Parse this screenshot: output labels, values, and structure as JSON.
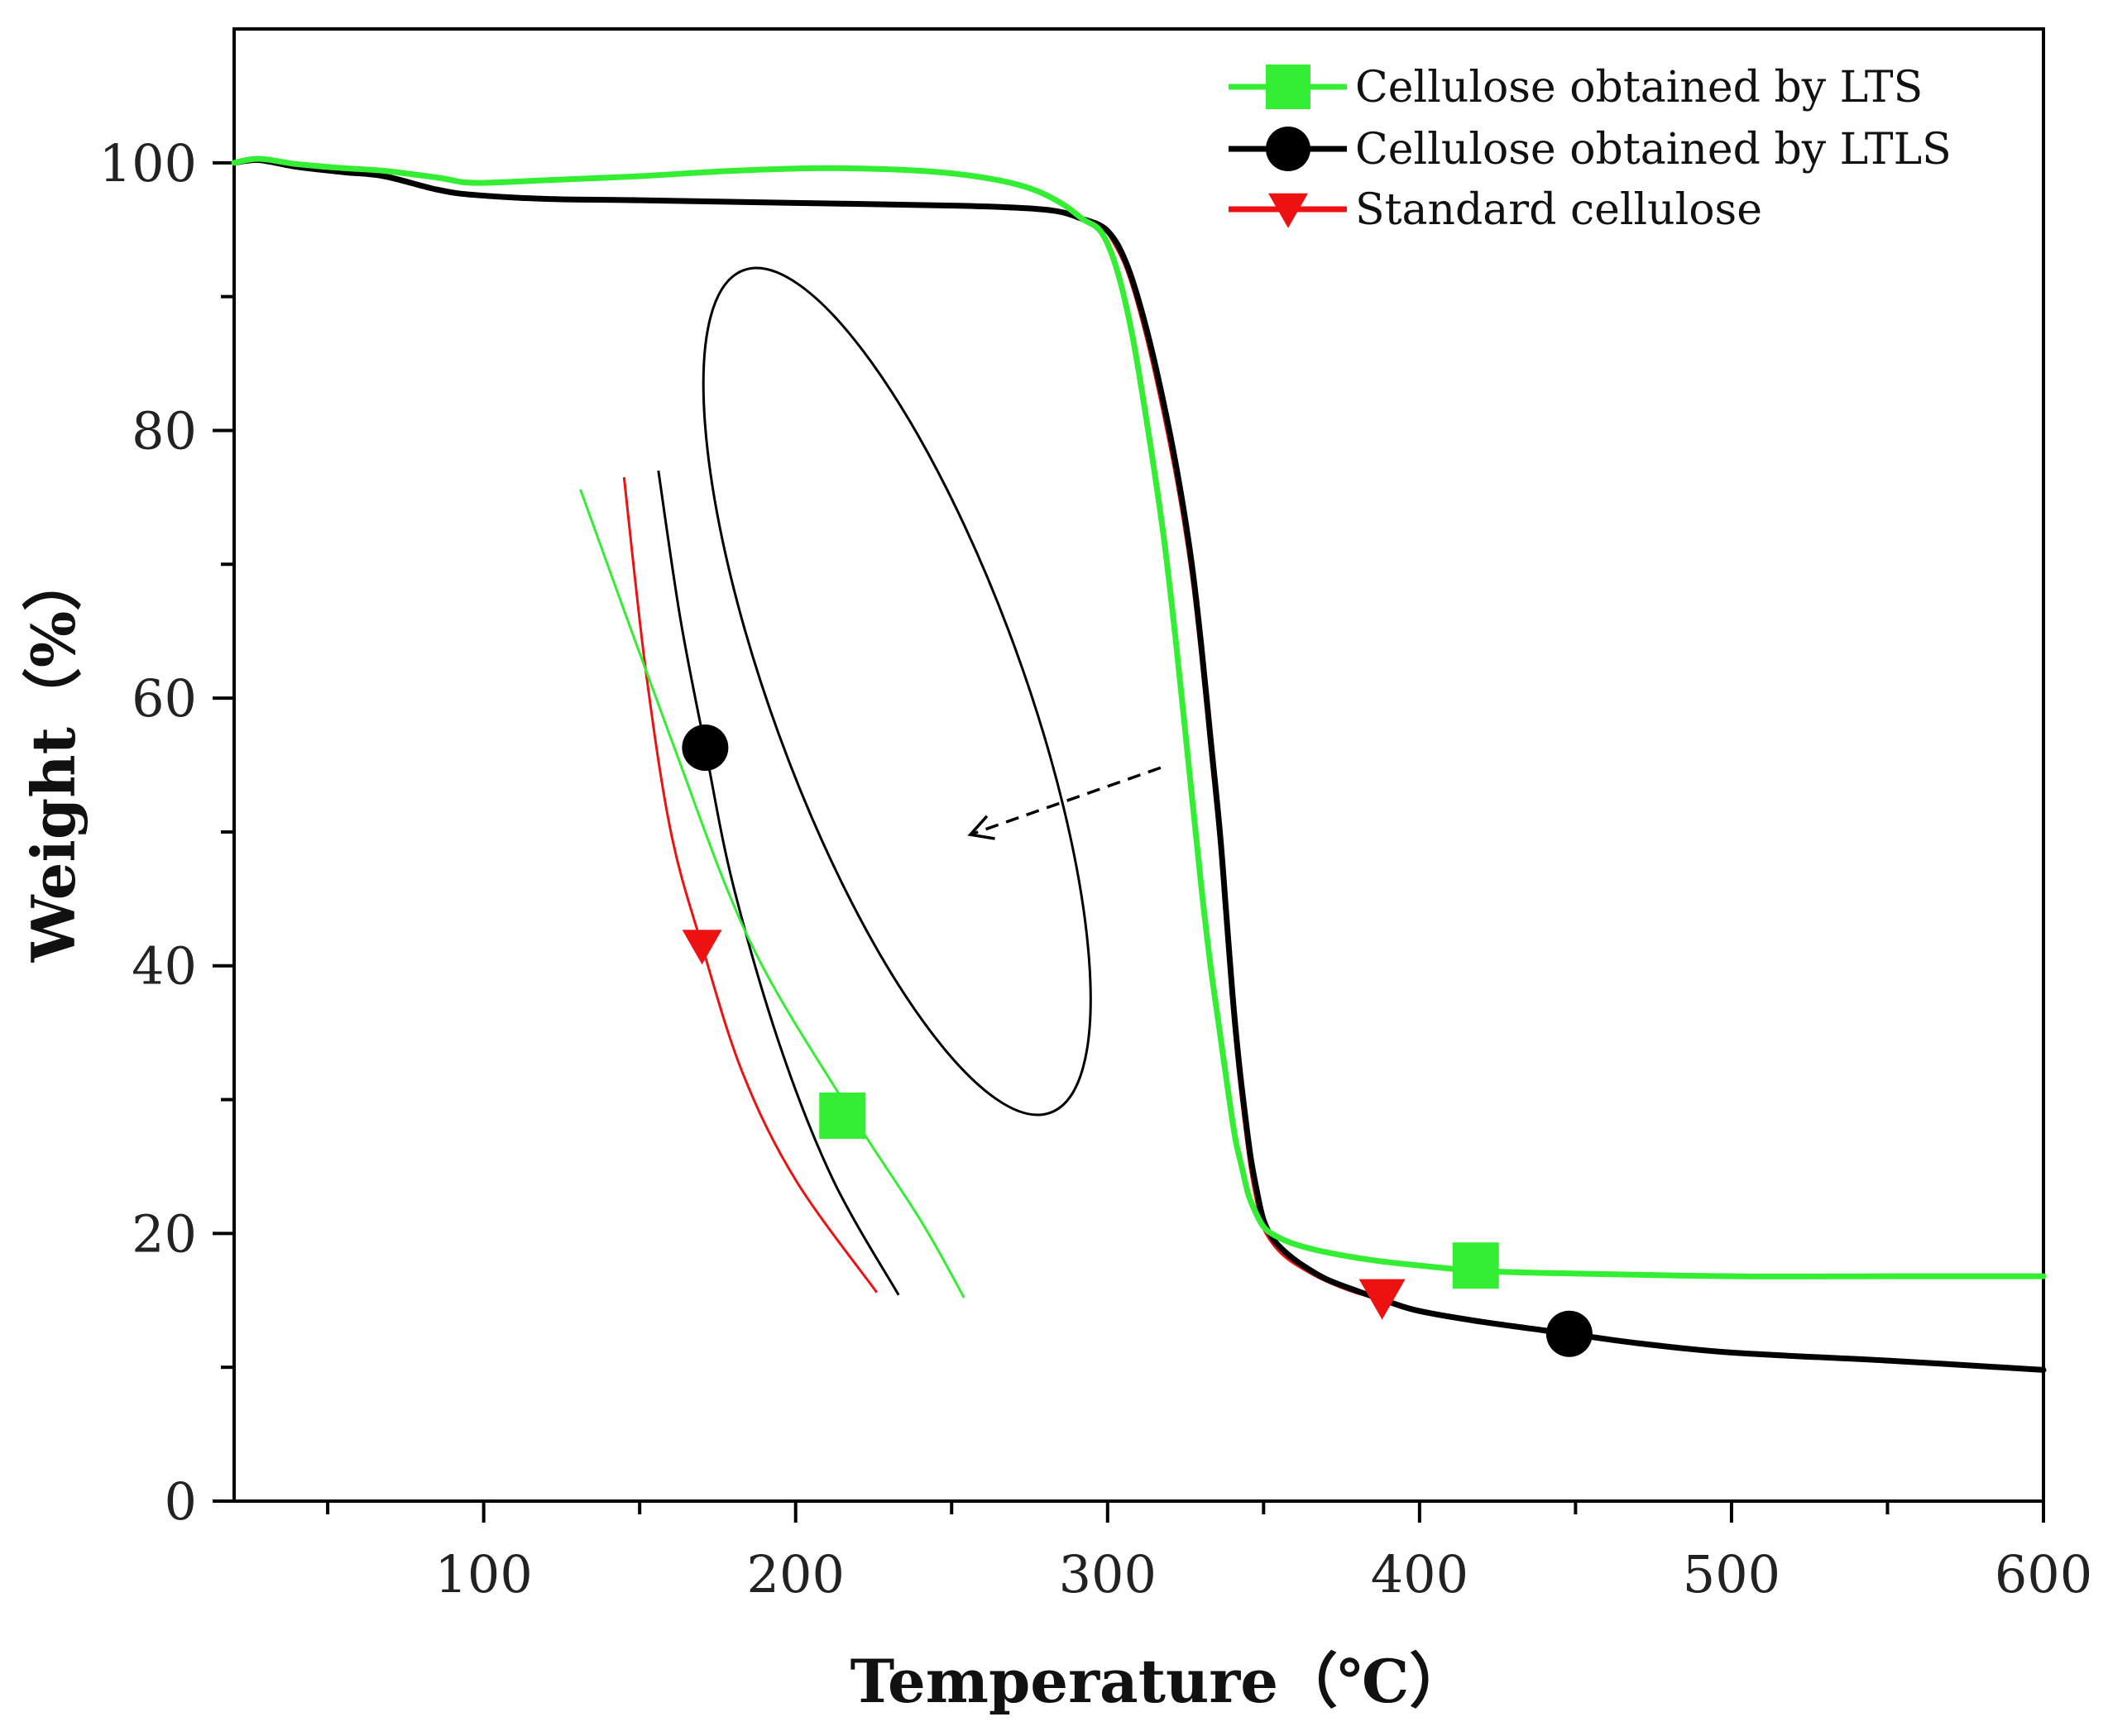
{
  "chart_data": {
    "type": "line",
    "title": "",
    "xlabel": "Temperature（℃）",
    "ylabel": "Weight（%）",
    "xlim": [
      20,
      600
    ],
    "ylim": [
      0,
      110
    ],
    "x_ticks": [
      100,
      200,
      300,
      400,
      500,
      600
    ],
    "y_ticks": [
      0,
      20,
      40,
      60,
      80,
      100
    ],
    "grid": false,
    "legend_position": "top-right",
    "colors": {
      "lts": "#33ee33",
      "ltls": "#000000",
      "standard": "#ee1111",
      "axis": "#000000"
    },
    "series": [
      {
        "name": "Cellulose obtained by LTS",
        "color": "#33ee33",
        "marker": "square",
        "marker_point": [
          418,
          17.6
        ],
        "x": [
          20,
          28,
          40,
          55,
          68,
          85,
          97,
          120,
          150,
          180,
          210,
          240,
          260,
          275,
          285,
          292,
          298,
          303,
          308,
          313,
          318,
          322,
          326,
          330,
          333,
          336,
          339,
          341,
          343,
          345,
          347,
          350,
          354,
          360,
          370,
          385,
          400,
          420,
          450,
          500,
          550,
          600
        ],
        "y": [
          100,
          100.3,
          99.9,
          99.6,
          99.4,
          98.9,
          98.5,
          98.7,
          99.0,
          99.4,
          99.6,
          99.4,
          98.9,
          98.1,
          97.0,
          95.8,
          94.8,
          92.0,
          87.0,
          80.0,
          72.0,
          64.0,
          55.0,
          46.0,
          40.0,
          35.0,
          30.0,
          27.0,
          25.0,
          23.0,
          21.8,
          20.5,
          19.8,
          19.2,
          18.6,
          18.0,
          17.6,
          17.2,
          17.0,
          16.8,
          16.8,
          16.8
        ]
      },
      {
        "name": "Cellulose obtained by LTLS",
        "color": "#000000",
        "marker": "circle",
        "marker_point": [
          448,
          12.5
        ],
        "x": [
          20,
          28,
          40,
          55,
          68,
          85,
          97,
          120,
          150,
          200,
          250,
          280,
          292,
          300,
          306,
          312,
          318,
          323,
          327,
          330,
          333,
          336,
          338,
          340,
          342,
          344,
          346,
          348,
          350,
          353,
          357,
          362,
          370,
          380,
          390,
          400,
          420,
          448,
          470,
          500,
          550,
          600
        ],
        "y": [
          100,
          100.2,
          99.7,
          99.3,
          99.0,
          98.0,
          97.6,
          97.3,
          97.2,
          97.0,
          96.8,
          96.5,
          95.8,
          94.9,
          92.5,
          88.0,
          82.0,
          76.0,
          70.0,
          64.0,
          57.0,
          50.0,
          44.0,
          38.0,
          33.0,
          29.0,
          25.5,
          23.0,
          21.0,
          19.6,
          18.6,
          17.7,
          16.6,
          15.7,
          14.9,
          14.2,
          13.4,
          12.5,
          11.8,
          11.1,
          10.5,
          9.8
        ]
      },
      {
        "name": "Standard cellulose",
        "color": "#ee1111",
        "marker": "triangle-down",
        "marker_point": [
          388,
          15.2
        ],
        "x": [
          300,
          306,
          312,
          318,
          323,
          327,
          330,
          333,
          336,
          338,
          340,
          342,
          344,
          346,
          348,
          350,
          353,
          357,
          362,
          370,
          380,
          388
        ],
        "y": [
          94.9,
          92.2,
          87.5,
          81.3,
          75.3,
          69.3,
          63.3,
          56.3,
          49.3,
          43.3,
          37.3,
          32.3,
          28.3,
          24.8,
          22.3,
          20.5,
          19.3,
          18.3,
          17.5,
          16.5,
          15.6,
          15.2
        ]
      }
    ],
    "inset": {
      "description_marker_points": {
        "lts": [
          215,
          28.8
        ],
        "ltls": [
          171,
          56.3
        ],
        "standard": [
          170,
          41.5
        ]
      },
      "lts_curve": {
        "x": [
          131,
          160,
          185,
          215,
          240,
          254
        ],
        "y": [
          75.6,
          57.0,
          42.0,
          30.0,
          21.0,
          15.2
        ]
      },
      "ltls_curve": {
        "x": [
          156,
          163,
          171,
          180,
          195,
          212,
          233
        ],
        "y": [
          77.0,
          66.0,
          56.3,
          46.0,
          34.0,
          24.0,
          15.4
        ]
      },
      "standard_curve": {
        "x": [
          145,
          152,
          160,
          170,
          183,
          200,
          226
        ],
        "y": [
          76.5,
          62.0,
          50.0,
          41.5,
          32.0,
          24.0,
          15.6
        ]
      },
      "ellipse_center": [
        232.5,
        60.5
      ],
      "arrow_from": [
        317,
        54.8
      ],
      "arrow_to": [
        256,
        49.8
      ]
    }
  }
}
